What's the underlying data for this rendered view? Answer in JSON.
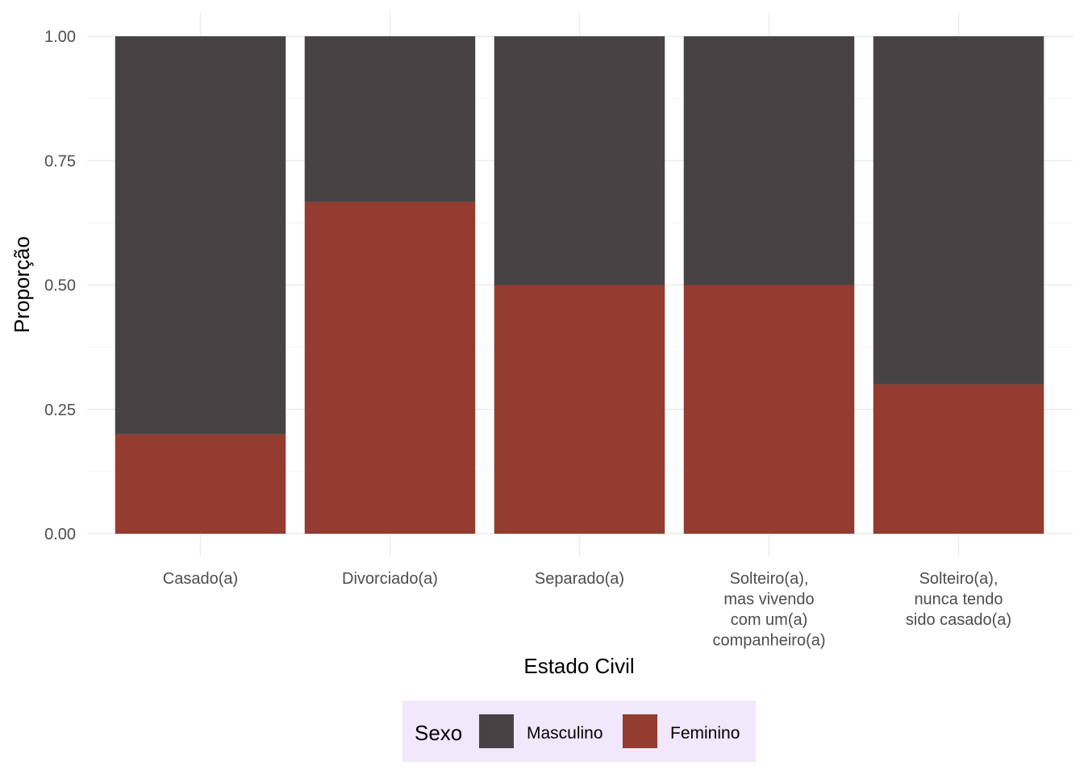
{
  "chart_data": {
    "type": "bar",
    "stacked": true,
    "categories": [
      [
        "Casado(a)"
      ],
      [
        "Divorciado(a)"
      ],
      [
        "Separado(a)"
      ],
      [
        "Solteiro(a),",
        "mas vivendo",
        "com um(a)",
        "companheiro(a)"
      ],
      [
        "Solteiro(a),",
        "nunca tendo",
        "sido casado(a)"
      ]
    ],
    "series": [
      {
        "name": "Masculino",
        "color": "#474345",
        "values": [
          0.8,
          0.333,
          0.5,
          0.5,
          0.7
        ]
      },
      {
        "name": "Feminino",
        "color": "#933C2F",
        "values": [
          0.2,
          0.667,
          0.5,
          0.5,
          0.3
        ]
      }
    ],
    "xlabel": "Estado Civil",
    "ylabel": "Proporção",
    "ylim": [
      0,
      1
    ],
    "yticks": [
      "0.00",
      "0.25",
      "0.50",
      "0.75",
      "1.00"
    ],
    "grid": true,
    "legend": {
      "title": "Sexo",
      "position": "bottom",
      "background": "#F1E8FB"
    }
  }
}
